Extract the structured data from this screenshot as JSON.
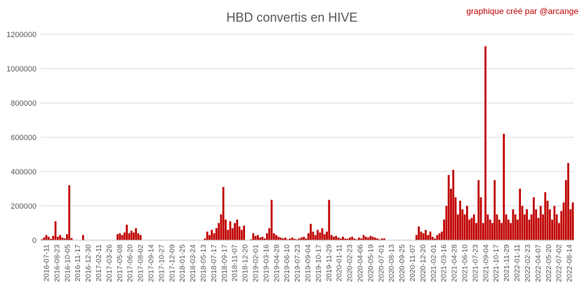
{
  "chart_data": {
    "type": "bar",
    "title": "HBD convertis en HIVE",
    "credit": "graphique créé par @arcange",
    "xlabel": "",
    "ylabel": "",
    "ylim": [
      0,
      1200000
    ],
    "y_ticks": [
      0,
      200000,
      400000,
      600000,
      800000,
      1000000,
      1200000
    ],
    "grid": true,
    "legend": "none",
    "bar_color": "#c00000",
    "x_tick_labels": [
      "2016-07-11",
      "2016-08-23",
      "2016-10-05",
      "2016-11-17",
      "2016-12-30",
      "2017-02-11",
      "2017-03-26",
      "2017-05-08",
      "2017-06-20",
      "2017-08-02",
      "2017-09-14",
      "2017-10-27",
      "2017-12-09",
      "2018-01-25",
      "2018-03-24",
      "2018-05-13",
      "2018-07-17",
      "2018-09-17",
      "2018-11-07",
      "2018-12-20",
      "2019-02-01",
      "2019-03-16",
      "2019-04-28",
      "2019-06-10",
      "2019-07-23",
      "2019-09-04",
      "2019-10-17",
      "2019-11-29",
      "2020-01-11",
      "2020-02-23",
      "2020-04-06",
      "2020-05-19",
      "2020-07-01",
      "2020-08-13",
      "2020-09-25",
      "2020-11-07",
      "2020-12-20",
      "2021-02-01",
      "2021-03-16",
      "2021-04-28",
      "2021-06-10",
      "2021-07-23",
      "2021-09-04",
      "2021-10-17",
      "2021-11-29",
      "2022-01-11",
      "2022-02-23",
      "2022-04-07",
      "2022-05-20",
      "2022-07-02",
      "2022-08-14"
    ],
    "series": [
      {
        "values": [
          5000,
          15000,
          30000,
          20000,
          8000,
          25000,
          110000,
          20000,
          30000,
          15000,
          10000,
          35000,
          320000,
          12000,
          0,
          2000,
          0,
          0,
          30000,
          0,
          0,
          0,
          0,
          0,
          0,
          0,
          0,
          0,
          0,
          0,
          0,
          0,
          0,
          35000,
          40000,
          30000,
          45000,
          90000,
          40000,
          55000,
          45000,
          70000,
          40000,
          30000,
          0,
          0,
          0,
          0,
          0,
          0,
          0,
          0,
          0,
          0,
          0,
          0,
          0,
          0,
          0,
          0,
          0,
          0,
          0,
          0,
          0,
          0,
          0,
          0,
          0,
          0,
          0,
          10000,
          50000,
          30000,
          60000,
          40000,
          70000,
          100000,
          150000,
          310000,
          120000,
          60000,
          110000,
          70000,
          100000,
          120000,
          80000,
          60000,
          85000,
          0,
          0,
          5000,
          40000,
          25000,
          30000,
          15000,
          20000,
          10000,
          40000,
          70000,
          235000,
          40000,
          30000,
          20000,
          15000,
          10000,
          15000,
          5000,
          10000,
          15000,
          8000,
          5000,
          10000,
          15000,
          20000,
          10000,
          40000,
          95000,
          50000,
          30000,
          60000,
          45000,
          70000,
          35000,
          50000,
          235000,
          30000,
          20000,
          25000,
          15000,
          10000,
          20000,
          10000,
          8000,
          15000,
          20000,
          10000,
          5000,
          15000,
          10000,
          30000,
          20000,
          15000,
          25000,
          20000,
          15000,
          10000,
          5000,
          10000,
          10000,
          0,
          0,
          0,
          0,
          0,
          0,
          0,
          0,
          0,
          0,
          0,
          0,
          0,
          30000,
          80000,
          50000,
          40000,
          60000,
          30000,
          50000,
          20000,
          10000,
          30000,
          40000,
          50000,
          120000,
          200000,
          380000,
          300000,
          410000,
          250000,
          150000,
          230000,
          180000,
          150000,
          200000,
          120000,
          130000,
          150000,
          100000,
          350000,
          250000,
          100000,
          1130000,
          150000,
          120000,
          100000,
          350000,
          150000,
          120000,
          100000,
          620000,
          150000,
          120000,
          100000,
          180000,
          150000,
          120000,
          300000,
          200000,
          150000,
          180000,
          120000,
          150000,
          250000,
          180000,
          130000,
          200000,
          150000,
          280000,
          230000,
          180000,
          120000,
          200000,
          150000,
          100000,
          170000,
          220000,
          350000,
          450000,
          180000,
          220000
        ]
      }
    ]
  }
}
